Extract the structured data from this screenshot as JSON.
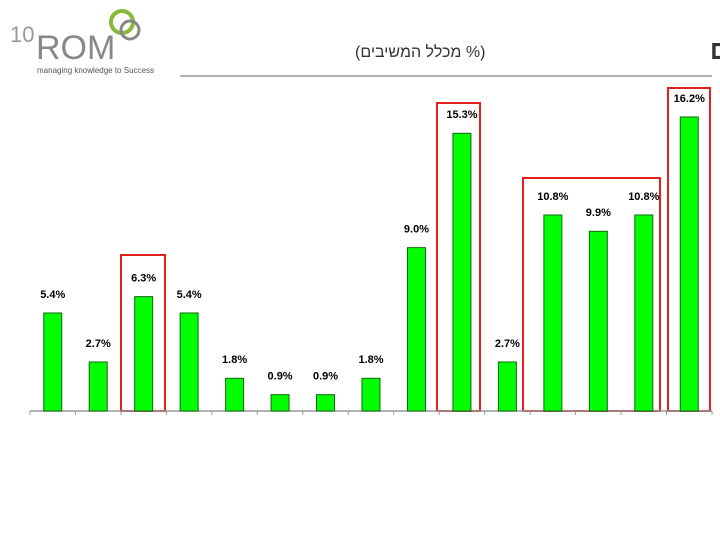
{
  "logo": {
    "number": "10",
    "name": "ROM",
    "tagline": "managing knowledge to Success"
  },
  "chart_data": {
    "type": "bar",
    "title": "חלוקת הארגונים למגזרים",
    "subtitle": "(% מכלל המשיבים)",
    "categories": [
      null,
      null,
      null,
      null,
      null,
      null,
      null,
      null,
      null,
      null,
      null,
      null,
      null,
      null,
      null
    ],
    "values": [
      5.4,
      2.7,
      6.3,
      5.4,
      1.8,
      0.9,
      0.9,
      1.8,
      9.0,
      15.3,
      2.7,
      10.8,
      9.9,
      10.8,
      16.2
    ],
    "value_labels": [
      "5.4%",
      "2.7%",
      "6.3%",
      "5.4%",
      "1.8%",
      "0.9%",
      "0.9%",
      "1.8%",
      "9.0%",
      "15.3%",
      "2.7%",
      "10.8%",
      "9.9%",
      "10.8%",
      "16.2%"
    ],
    "color": "#00ff00"
  }
}
